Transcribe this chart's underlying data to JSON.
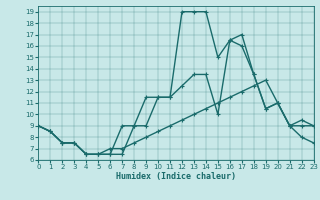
{
  "xlabel": "Humidex (Indice chaleur)",
  "bg_color": "#c8e8e8",
  "line_color": "#1a6b6b",
  "xlim": [
    0,
    23
  ],
  "ylim": [
    6,
    19.5
  ],
  "xticks": [
    0,
    1,
    2,
    3,
    4,
    5,
    6,
    7,
    8,
    9,
    10,
    11,
    12,
    13,
    14,
    15,
    16,
    17,
    18,
    19,
    20,
    21,
    22,
    23
  ],
  "yticks": [
    6,
    7,
    8,
    9,
    10,
    11,
    12,
    13,
    14,
    15,
    16,
    17,
    18,
    19
  ],
  "line1_x": [
    0,
    1,
    2,
    3,
    4,
    5,
    6,
    7,
    8,
    9,
    10,
    11,
    12,
    13,
    14,
    15,
    16,
    17,
    18,
    19,
    20,
    21,
    22,
    23
  ],
  "line1_y": [
    9,
    8.5,
    7.5,
    7.5,
    6.5,
    6.5,
    6.5,
    9.0,
    9.0,
    11.5,
    11.5,
    11.5,
    19.0,
    19.0,
    19.0,
    15.0,
    16.5,
    17.0,
    13.5,
    10.5,
    11.0,
    9.0,
    9.5,
    9.0
  ],
  "line2_x": [
    0,
    1,
    2,
    3,
    4,
    5,
    6,
    7,
    8,
    9,
    10,
    11,
    12,
    13,
    14,
    15,
    16,
    17,
    18,
    19,
    20,
    21,
    22,
    23
  ],
  "line2_y": [
    9,
    8.5,
    7.5,
    7.5,
    6.5,
    6.5,
    6.5,
    6.5,
    9.0,
    9.0,
    11.5,
    11.5,
    12.5,
    13.5,
    13.5,
    10.0,
    16.5,
    16.0,
    13.5,
    10.5,
    11.0,
    9.0,
    9.0,
    9.0
  ],
  "line3_x": [
    0,
    1,
    2,
    3,
    4,
    5,
    6,
    7,
    8,
    9,
    10,
    11,
    12,
    13,
    14,
    15,
    16,
    17,
    18,
    19,
    20,
    21,
    22,
    23
  ],
  "line3_y": [
    9,
    8.5,
    7.5,
    7.5,
    6.5,
    6.5,
    7.0,
    7.0,
    7.5,
    8.0,
    8.5,
    9.0,
    9.5,
    10.0,
    10.5,
    11.0,
    11.5,
    12.0,
    12.5,
    13.0,
    11.0,
    9.0,
    8.0,
    7.5
  ],
  "xlabel_fontsize": 6,
  "tick_fontsize": 5,
  "linewidth": 1.0,
  "markersize": 3
}
